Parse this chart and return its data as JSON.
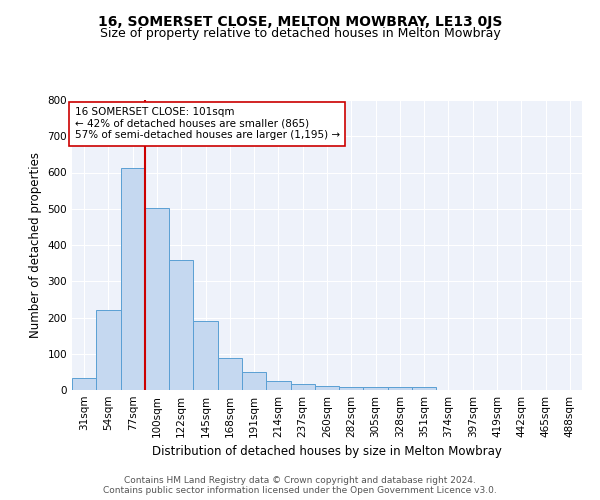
{
  "title": "16, SOMERSET CLOSE, MELTON MOWBRAY, LE13 0JS",
  "subtitle": "Size of property relative to detached houses in Melton Mowbray",
  "xlabel": "Distribution of detached houses by size in Melton Mowbray",
  "ylabel": "Number of detached properties",
  "categories": [
    "31sqm",
    "54sqm",
    "77sqm",
    "100sqm",
    "122sqm",
    "145sqm",
    "168sqm",
    "191sqm",
    "214sqm",
    "237sqm",
    "260sqm",
    "282sqm",
    "305sqm",
    "328sqm",
    "351sqm",
    "374sqm",
    "397sqm",
    "419sqm",
    "442sqm",
    "465sqm",
    "488sqm"
  ],
  "values": [
    33,
    222,
    613,
    503,
    360,
    191,
    88,
    51,
    24,
    16,
    11,
    8,
    8,
    8,
    8,
    0,
    0,
    0,
    0,
    0,
    0
  ],
  "bar_color": "#c5d8f0",
  "bar_edge_color": "#5a9fd4",
  "vline_x_index": 3,
  "vline_color": "#cc0000",
  "annotation_text": "16 SOMERSET CLOSE: 101sqm\n← 42% of detached houses are smaller (865)\n57% of semi-detached houses are larger (1,195) →",
  "annotation_box_color": "white",
  "annotation_box_edge_color": "#cc0000",
  "ylim": [
    0,
    800
  ],
  "yticks": [
    0,
    100,
    200,
    300,
    400,
    500,
    600,
    700,
    800
  ],
  "background_color": "#eef2fa",
  "grid_color": "white",
  "footer_text": "Contains HM Land Registry data © Crown copyright and database right 2024.\nContains public sector information licensed under the Open Government Licence v3.0.",
  "title_fontsize": 10,
  "subtitle_fontsize": 9,
  "xlabel_fontsize": 8.5,
  "ylabel_fontsize": 8.5,
  "footer_fontsize": 6.5,
  "tick_fontsize": 7.5,
  "annot_fontsize": 7.5
}
